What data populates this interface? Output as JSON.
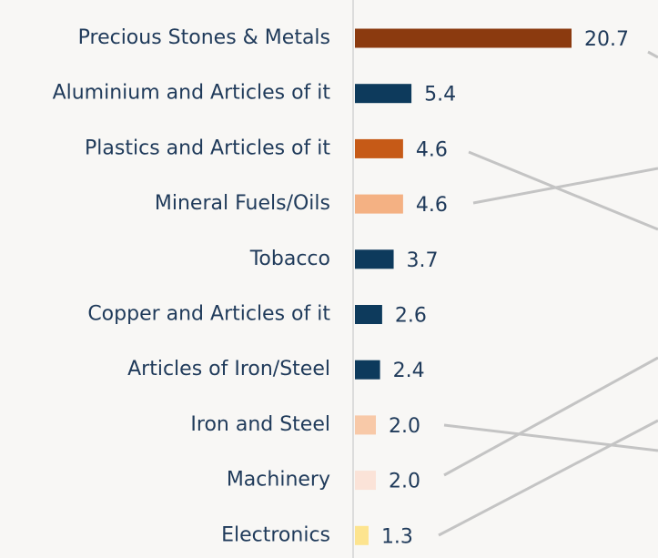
{
  "chart_data": {
    "type": "bar",
    "orientation": "horizontal",
    "categories": [
      "Precious Stones & Metals",
      "Aluminium and Articles of it",
      "Plastics and Articles of it",
      "Mineral Fuels/Oils",
      "Tobacco",
      "Copper and Articles of it",
      "Articles of Iron/Steel",
      "Iron and Steel",
      "Machinery",
      "Electronics"
    ],
    "values": [
      20.7,
      5.4,
      4.6,
      4.6,
      3.7,
      2.6,
      2.4,
      2,
      2,
      1.3
    ],
    "value_labels": [
      "20.7",
      "5.4",
      "4.6",
      "4.6",
      "3.7",
      "2.6",
      "2.4",
      "2.0",
      "2.0",
      "1.3"
    ],
    "colors": [
      "#8b3a0f",
      "#0d3a5c",
      "#c65a17",
      "#f4b183",
      "#0d3a5c",
      "#0d3a5c",
      "#0d3a5c",
      "#f8c9a8",
      "#fbe3d8",
      "#fde48f"
    ]
  }
}
